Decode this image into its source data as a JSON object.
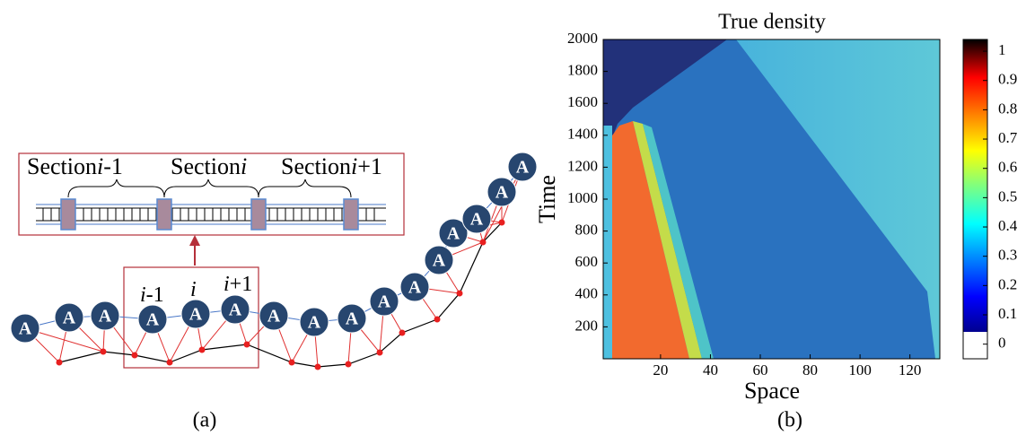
{
  "panel_a": {
    "caption": "(a)",
    "node_label": "A",
    "sections": [
      {
        "word": "Section",
        "index": "i",
        "offset": "-1"
      },
      {
        "word": "Section",
        "index": "i",
        "offset": ""
      },
      {
        "word": "Section",
        "index": "i",
        "offset": "+1"
      }
    ],
    "node_indices": [
      {
        "index": "i",
        "offset": "-1"
      },
      {
        "index": "i",
        "offset": ""
      },
      {
        "index": "i",
        "offset": "+1"
      }
    ]
  },
  "chart_data": {
    "type": "heatmap",
    "title": "True density",
    "x_label": "Space",
    "y_label": "Time",
    "caption": "(b)",
    "xlim": [
      -3,
      132
    ],
    "xticks": [
      20,
      40,
      60,
      80,
      100,
      120
    ],
    "ylim": [
      0,
      2000
    ],
    "yticks": [
      200,
      400,
      600,
      800,
      1000,
      1200,
      1400,
      1600,
      1800,
      2000
    ],
    "clim": [
      -0.05,
      1.04
    ],
    "cticks": [
      0,
      0.1,
      0.2,
      0.3,
      0.4,
      0.5,
      0.6,
      0.7,
      0.8,
      0.9,
      1
    ],
    "colormap": "jet"
  }
}
